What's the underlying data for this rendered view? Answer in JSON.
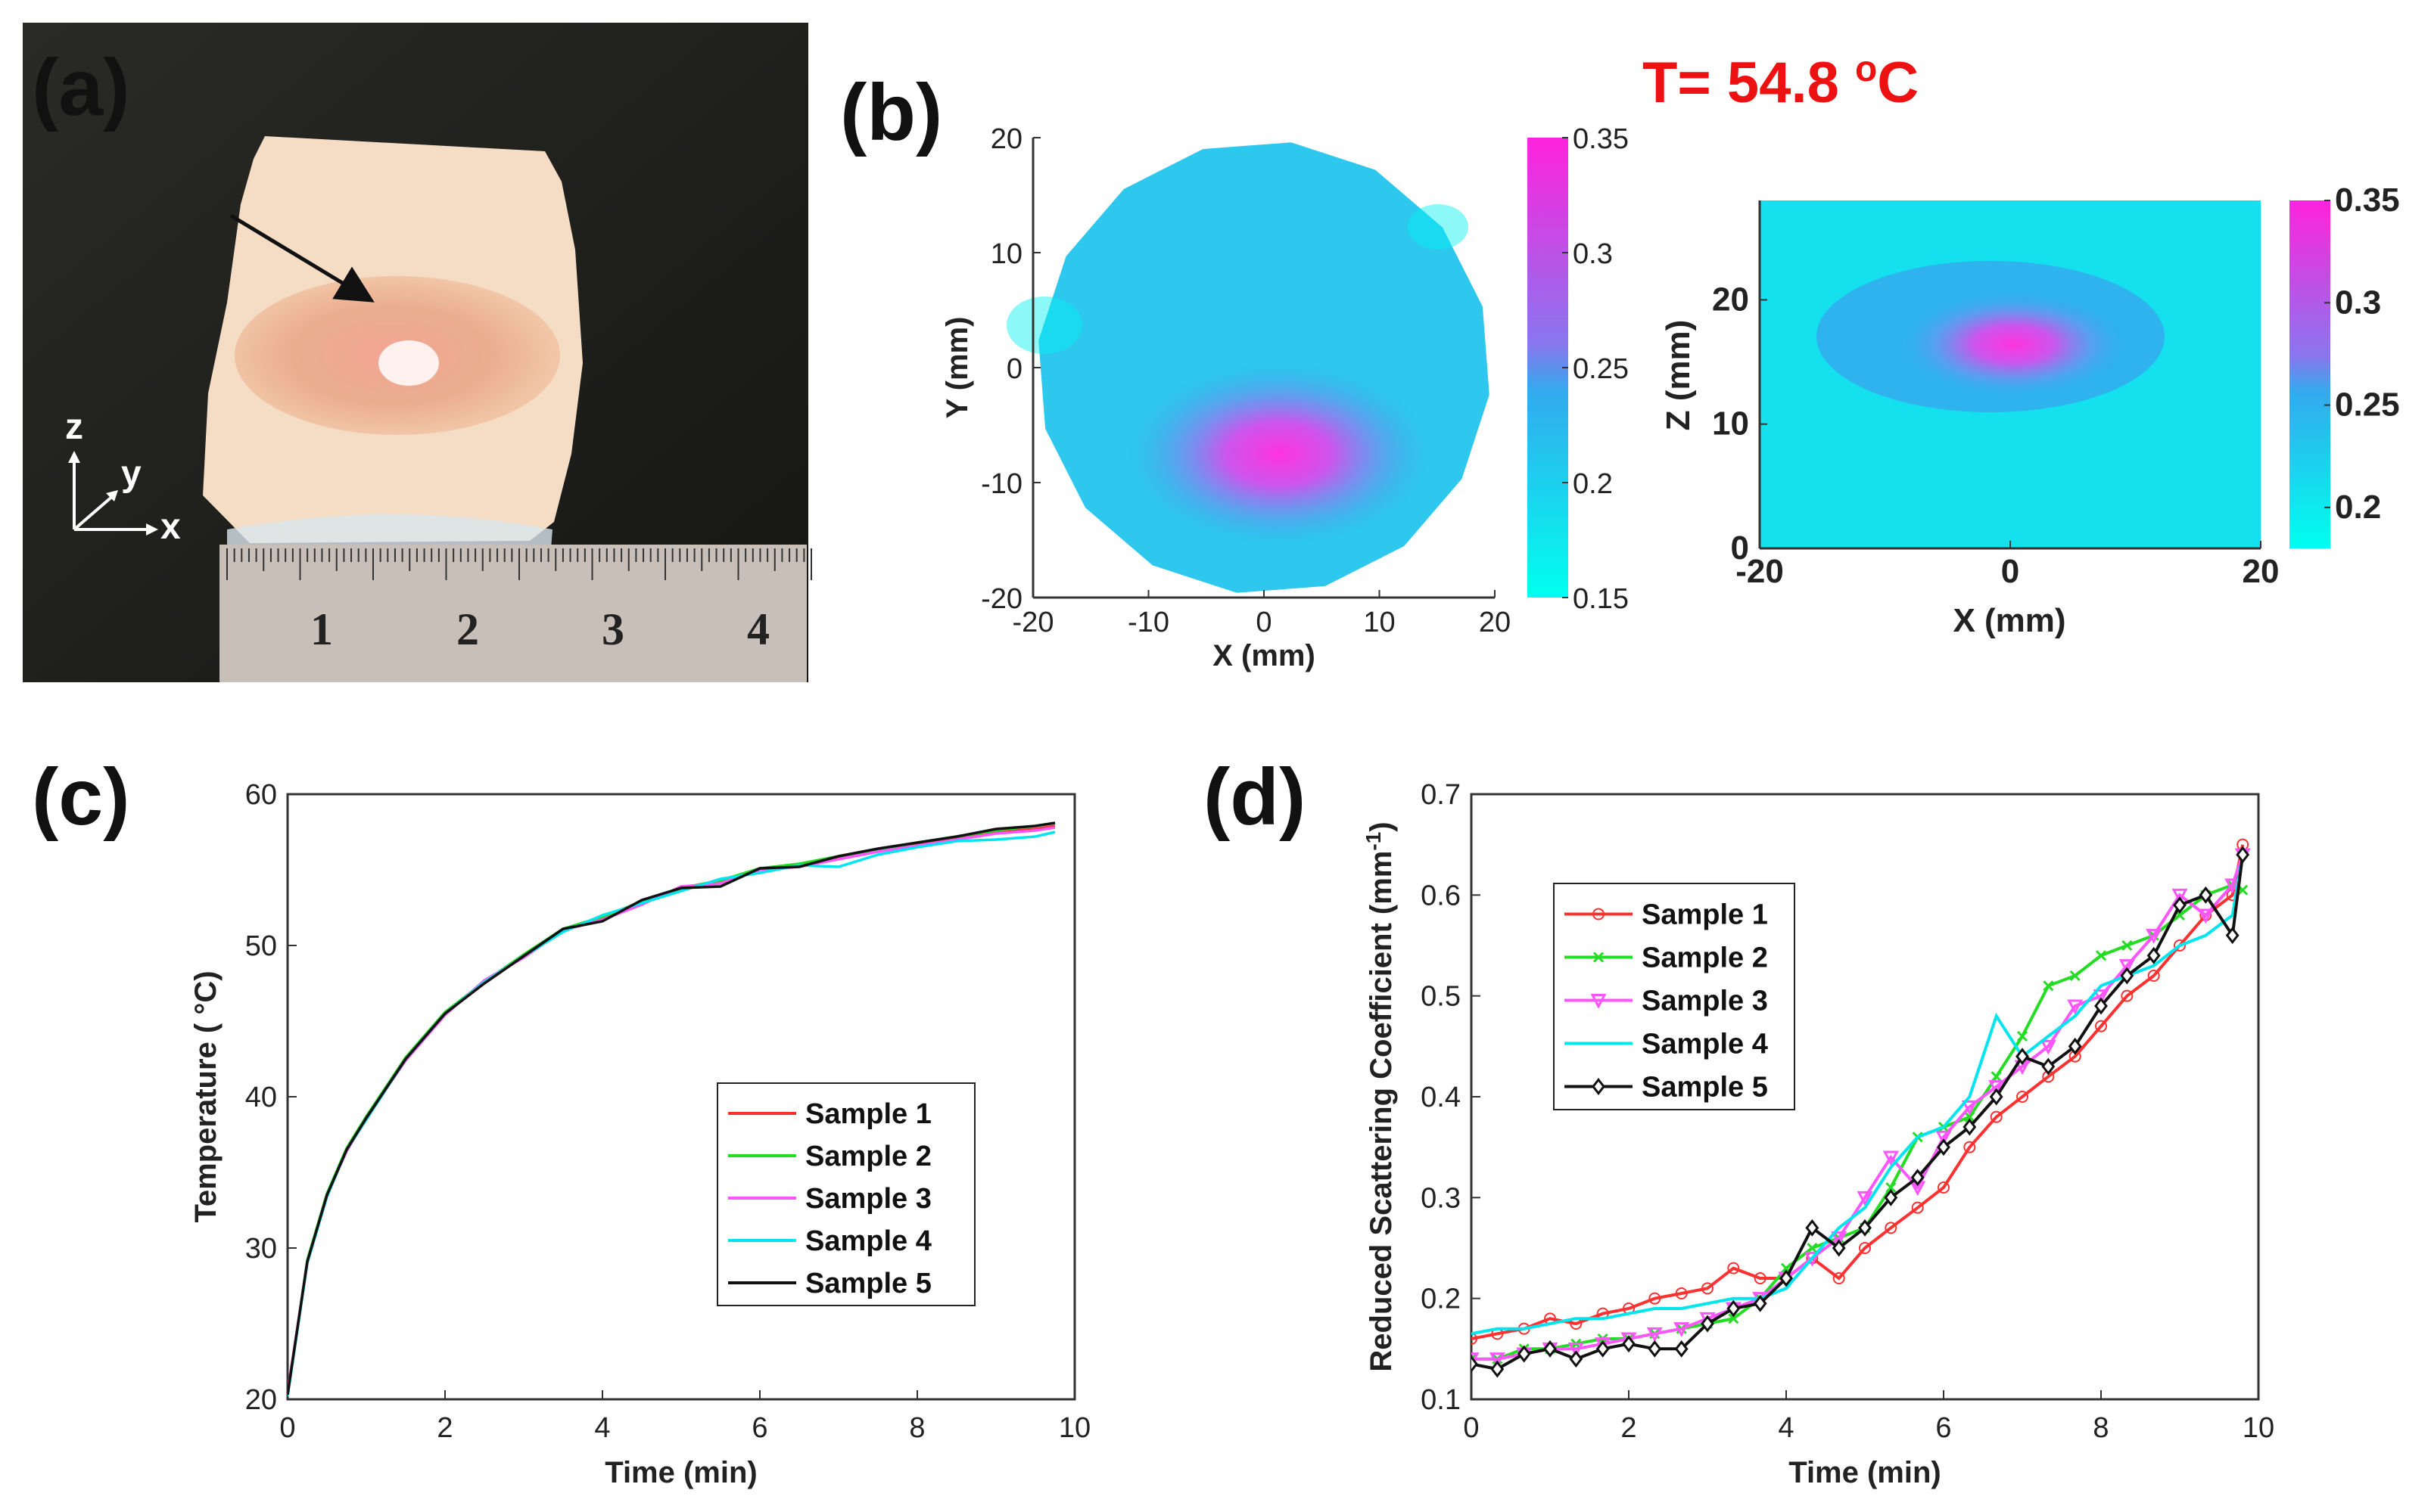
{
  "panels": {
    "a": {
      "label": "(a)",
      "ruler_numbers": [
        "1",
        "2",
        "3",
        "4"
      ],
      "axis_letters": {
        "z": "z",
        "y": "y",
        "x": "x"
      }
    },
    "b": {
      "label": "(b)",
      "temperature_prefix": "T= 54.8 ",
      "temperature_sup": "o",
      "temperature_unit": "C"
    },
    "c": {
      "label": "(c)"
    },
    "d": {
      "label": "(d)"
    }
  },
  "colors": {
    "sample1": "#ff3030",
    "sample2": "#22dd22",
    "sample3": "#ff55ff",
    "sample4": "#00e5ee",
    "sample5": "#111111",
    "cmap_low": "#00ffee",
    "cmap_mid": "#33aaee",
    "cmap_high": "#ff22dd"
  },
  "chart_data": [
    {
      "id": "b1",
      "type": "heatmap",
      "title": "",
      "xlabel": "X (mm)",
      "ylabel": "Y (mm)",
      "xlim": [
        -20,
        20
      ],
      "ylim": [
        -20,
        20
      ],
      "xticks": [
        "-20",
        "-10",
        "0",
        "10",
        "20"
      ],
      "yticks": [
        "20",
        "10",
        "0",
        "-10",
        "-20"
      ],
      "colorbar": {
        "range": [
          0.15,
          0.35
        ],
        "ticks": [
          "0.35",
          "0.3",
          "0.25",
          "0.2",
          "0.15"
        ]
      },
      "hotspot": {
        "x": 1,
        "y": -8,
        "peak": 0.33
      }
    },
    {
      "id": "b2",
      "type": "heatmap",
      "title": "",
      "xlabel": "X (mm)",
      "ylabel": "Z (mm)",
      "xlim": [
        -20,
        20
      ],
      "ylim": [
        0,
        28
      ],
      "xticks": [
        "-20",
        "0",
        "20"
      ],
      "yticks": [
        "20",
        "10",
        "0"
      ],
      "colorbar": {
        "range": [
          0.18,
          0.35
        ],
        "ticks": [
          "0.35",
          "0.3",
          "0.25",
          "0.2"
        ]
      },
      "hotspot": {
        "x": 1,
        "z": 17,
        "peak": 0.32
      }
    },
    {
      "id": "c",
      "type": "line",
      "title": "",
      "xlabel": "Time (min)",
      "ylabel": "Temperature ( °C)",
      "xlim": [
        0,
        10
      ],
      "ylim": [
        20,
        60
      ],
      "xticks": [
        "0",
        "2",
        "4",
        "6",
        "8",
        "10"
      ],
      "yticks": [
        "60",
        "50",
        "40",
        "30",
        "20"
      ],
      "legend_position": "lower-right",
      "x": [
        0,
        0.25,
        0.5,
        0.75,
        1,
        1.5,
        2,
        2.5,
        3,
        3.5,
        4,
        4.5,
        5,
        5.5,
        6,
        6.5,
        7,
        7.5,
        8,
        8.5,
        9,
        9.5,
        9.75
      ],
      "series": [
        {
          "name": "Sample 1",
          "values": [
            20.5,
            29,
            33.5,
            36.5,
            38.5,
            42.5,
            45.5,
            47.5,
            49.3,
            51,
            51.8,
            52.8,
            53.7,
            54.2,
            55,
            55.3,
            55.8,
            56.2,
            56.7,
            57.1,
            57.5,
            57.7,
            57.9
          ]
        },
        {
          "name": "Sample 2",
          "values": [
            20.3,
            29.2,
            33.6,
            36.6,
            38.7,
            42.6,
            45.6,
            47.6,
            49.4,
            51.1,
            51.9,
            52.9,
            53.8,
            54.3,
            55.1,
            55.4,
            55.9,
            56.3,
            56.8,
            57.2,
            57.6,
            57.9,
            58.1
          ]
        },
        {
          "name": "Sample 3",
          "values": [
            20.4,
            29.1,
            33.5,
            36.4,
            38.6,
            42.4,
            45.4,
            47.7,
            49.2,
            51,
            51.7,
            52.7,
            53.9,
            54.1,
            55,
            55.2,
            55.7,
            56.2,
            56.6,
            57,
            57.4,
            57.6,
            57.8
          ]
        },
        {
          "name": "Sample 4",
          "values": [
            20.2,
            29,
            33.4,
            36.5,
            38.5,
            42.5,
            45.5,
            47.6,
            49.3,
            50.9,
            52,
            52.8,
            53.6,
            54.4,
            54.8,
            55.3,
            55.2,
            56,
            56.5,
            56.9,
            57,
            57.2,
            57.5
          ]
        },
        {
          "name": "Sample 5",
          "values": [
            20.3,
            29.1,
            33.5,
            36.5,
            38.6,
            42.5,
            45.5,
            47.5,
            49.3,
            51.1,
            51.6,
            53,
            53.8,
            53.9,
            55.1,
            55.2,
            55.9,
            56.4,
            56.8,
            57.2,
            57.7,
            57.9,
            58.1
          ]
        }
      ]
    },
    {
      "id": "d",
      "type": "line",
      "title": "",
      "xlabel": "Time (min)",
      "ylabel": "Reduced Scattering Coefficient (mm",
      "ylabel_sup": "-1",
      "ylabel_close": ")",
      "xlim": [
        0,
        10
      ],
      "ylim": [
        0.1,
        0.7
      ],
      "xticks": [
        "0",
        "2",
        "4",
        "6",
        "8",
        "10"
      ],
      "yticks": [
        "0.7",
        "0.6",
        "0.5",
        "0.4",
        "0.3",
        "0.2",
        "0.1"
      ],
      "legend_position": "top-left",
      "x": [
        0,
        0.33,
        0.67,
        1,
        1.33,
        1.67,
        2,
        2.33,
        2.67,
        3,
        3.33,
        3.67,
        4,
        4.33,
        4.67,
        5,
        5.33,
        5.67,
        6,
        6.33,
        6.67,
        7,
        7.33,
        7.67,
        8,
        8.33,
        8.67,
        9,
        9.33,
        9.67,
        9.8
      ],
      "series": [
        {
          "name": "Sample 1",
          "marker": "circle",
          "values": [
            0.16,
            0.165,
            0.17,
            0.18,
            0.175,
            0.185,
            0.19,
            0.2,
            0.205,
            0.21,
            0.23,
            0.22,
            0.22,
            0.24,
            0.22,
            0.25,
            0.27,
            0.29,
            0.31,
            0.35,
            0.38,
            0.4,
            0.42,
            0.44,
            0.47,
            0.5,
            0.52,
            0.55,
            0.58,
            0.6,
            0.65
          ]
        },
        {
          "name": "Sample 2",
          "marker": "x",
          "values": [
            0.14,
            0.14,
            0.15,
            0.15,
            0.155,
            0.16,
            0.16,
            0.165,
            0.17,
            0.175,
            0.18,
            0.2,
            0.23,
            0.25,
            0.26,
            0.27,
            0.31,
            0.36,
            0.37,
            0.38,
            0.42,
            0.46,
            0.51,
            0.52,
            0.54,
            0.55,
            0.56,
            0.58,
            0.6,
            0.61,
            0.605
          ]
        },
        {
          "name": "Sample 3",
          "marker": "triangle-down",
          "values": [
            0.14,
            0.14,
            0.145,
            0.15,
            0.15,
            0.155,
            0.16,
            0.165,
            0.17,
            0.18,
            0.19,
            0.2,
            0.22,
            0.24,
            0.26,
            0.3,
            0.34,
            0.31,
            0.36,
            0.39,
            0.41,
            0.43,
            0.45,
            0.49,
            0.5,
            0.53,
            0.56,
            0.6,
            0.58,
            0.61,
            0.64
          ]
        },
        {
          "name": "Sample 4",
          "marker": "none",
          "values": [
            0.165,
            0.17,
            0.17,
            0.175,
            0.18,
            0.18,
            0.185,
            0.19,
            0.19,
            0.195,
            0.2,
            0.2,
            0.21,
            0.24,
            0.27,
            0.29,
            0.33,
            0.36,
            0.37,
            0.4,
            0.48,
            0.44,
            0.46,
            0.48,
            0.51,
            0.52,
            0.53,
            0.55,
            0.56,
            0.58,
            0.64
          ]
        },
        {
          "name": "Sample 5",
          "marker": "diamond",
          "values": [
            0.135,
            0.13,
            0.145,
            0.15,
            0.14,
            0.15,
            0.155,
            0.15,
            0.15,
            0.175,
            0.19,
            0.195,
            0.22,
            0.27,
            0.25,
            0.27,
            0.3,
            0.32,
            0.35,
            0.37,
            0.4,
            0.44,
            0.43,
            0.45,
            0.49,
            0.52,
            0.54,
            0.59,
            0.6,
            0.56,
            0.64
          ]
        }
      ]
    }
  ]
}
